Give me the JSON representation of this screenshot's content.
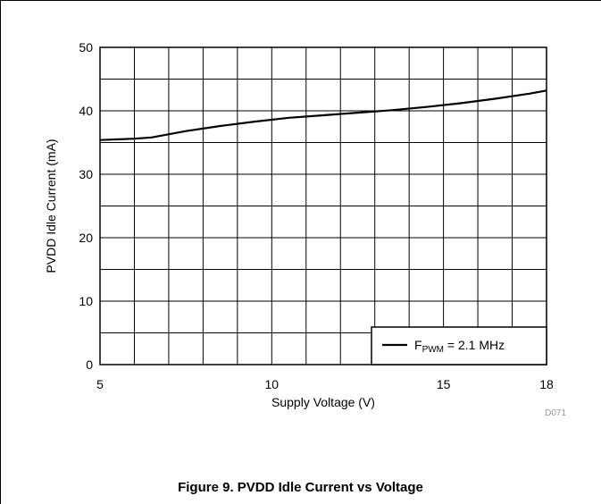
{
  "caption": "Figure 9. PVDD Idle Current vs Voltage",
  "chart_data": {
    "type": "line",
    "xlabel": "Supply Voltage (V)",
    "ylabel": "PVDD Idle Current (mA)",
    "xlim": [
      5,
      18
    ],
    "ylim": [
      0,
      50
    ],
    "x_ticks": [
      5,
      10,
      15,
      18
    ],
    "y_ticks": [
      0,
      10,
      20,
      30,
      40,
      50
    ],
    "x_gridlines": [
      5,
      6,
      7,
      8,
      9,
      10,
      11,
      12,
      13,
      14,
      15,
      16,
      17,
      18
    ],
    "y_gridlines": [
      0,
      5,
      10,
      15,
      20,
      25,
      30,
      35,
      40,
      45,
      50
    ],
    "grid": true,
    "legend_position": "bottom-right",
    "legend": {
      "prefix": "F",
      "subscript": "PWM",
      "suffix": " = 2.1 MHz"
    },
    "code_label": "D071",
    "colors": {
      "line": "#000000",
      "grid": "#000000"
    },
    "series": [
      {
        "x": [
          5,
          6,
          6.5,
          7.5,
          8.5,
          9.5,
          10.5,
          11.5,
          12.5,
          13.5,
          14.5,
          15.5,
          16.5,
          17.5,
          18
        ],
        "y": [
          35.4,
          35.6,
          35.8,
          36.8,
          37.6,
          38.3,
          38.9,
          39.3,
          39.7,
          40.1,
          40.6,
          41.2,
          41.9,
          42.7,
          43.2
        ]
      }
    ]
  }
}
